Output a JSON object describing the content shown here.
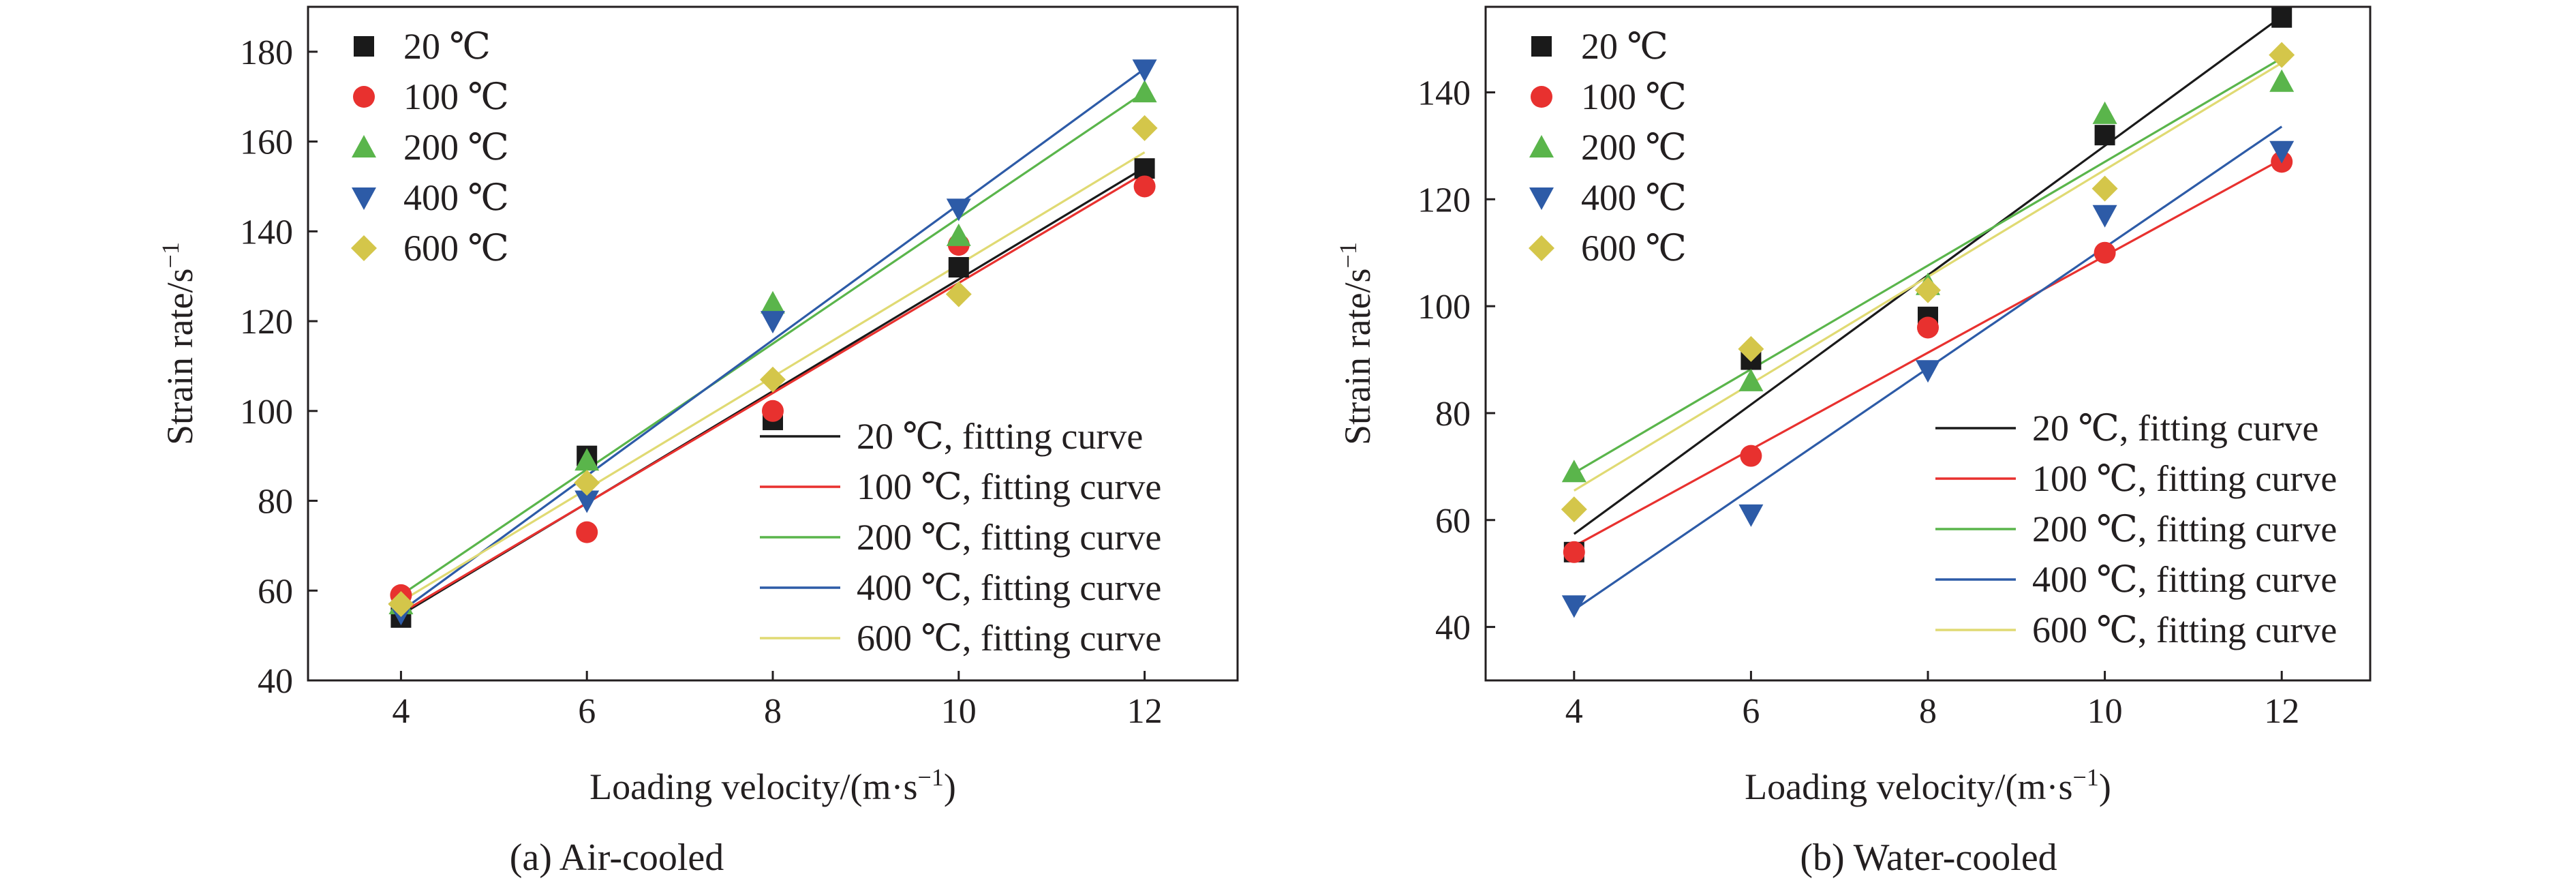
{
  "chart_data": [
    {
      "type": "scatter",
      "caption": "(a) Air-cooled",
      "xlabel": "Loading velocity/(m·s",
      "xlabel_sup": "−1",
      "xlabel_end": ")",
      "ylabel": "Strain rate/s",
      "ylabel_sup": "−1",
      "xlim": [
        3,
        13
      ],
      "ylim": [
        40,
        190
      ],
      "xticks": [
        4,
        6,
        8,
        10,
        12
      ],
      "yticks": [
        40,
        60,
        80,
        100,
        120,
        140,
        160,
        180
      ],
      "x": [
        4,
        6,
        8,
        10,
        12
      ],
      "legend_position": "top-left",
      "fit_legend_position": "bottom-right",
      "series": [
        {
          "name": "20 ℃",
          "fit_name": "20 ℃, fitting curve",
          "marker": "square",
          "color": "#1a1a1a",
          "fit_color": "#1a1a1a",
          "values": [
            54,
            90,
            98,
            132,
            154
          ],
          "fit": [
            54.6,
            79.5,
            104.4,
            129.3,
            154.2
          ]
        },
        {
          "name": "100 ℃",
          "fit_name": "100 ℃, fitting curve",
          "marker": "circle",
          "color": "#e8312f",
          "fit_color": "#e8312f",
          "values": [
            59,
            73,
            100,
            137,
            150
          ],
          "fit": [
            55,
            79.5,
            104,
            128.5,
            153
          ]
        },
        {
          "name": "200 ℃",
          "fit_name": "200 ℃, fitting curve",
          "marker": "triangle-up",
          "color": "#5ab54b",
          "fit_color": "#5ab54b",
          "values": [
            57,
            89,
            124,
            139,
            171
          ],
          "fit": [
            59,
            87,
            115,
            143,
            171
          ]
        },
        {
          "name": "400 ℃",
          "fit_name": "400 ℃, fitting curve",
          "marker": "triangle-down",
          "color": "#2d5ba7",
          "fit_color": "#2d5ba7",
          "values": [
            55,
            80,
            120,
            145,
            176
          ],
          "fit": [
            55.4,
            85.6,
            115.8,
            146,
            176.2
          ]
        },
        {
          "name": "600 ℃",
          "fit_name": "600 ℃, fitting curve",
          "marker": "diamond",
          "color": "#d4c64a",
          "fit_color": "#e0da73",
          "values": [
            57,
            84,
            107,
            126,
            163
          ],
          "fit": [
            57.6,
            82.6,
            107.6,
            132.6,
            157.6
          ]
        }
      ]
    },
    {
      "type": "scatter",
      "caption": "(b) Water-cooled",
      "xlabel": "Loading velocity/(m·s",
      "xlabel_sup": "−1",
      "xlabel_end": ")",
      "ylabel": "Strain rate/s",
      "ylabel_sup": "−1",
      "xlim": [
        3,
        13
      ],
      "ylim": [
        30,
        156
      ],
      "xticks": [
        4,
        6,
        8,
        10,
        12
      ],
      "yticks": [
        40,
        60,
        80,
        100,
        120,
        140
      ],
      "x": [
        4,
        6,
        8,
        10,
        12
      ],
      "legend_position": "top-left",
      "fit_legend_position": "bottom-right",
      "series": [
        {
          "name": "20 ℃",
          "fit_name": "20 ℃, fitting curve",
          "marker": "square",
          "color": "#1a1a1a",
          "fit_color": "#1a1a1a",
          "values": [
            54,
            90,
            98,
            132,
            154
          ],
          "fit": [
            57.4,
            81.6,
            105.8,
            130,
            154.2
          ]
        },
        {
          "name": "100 ℃",
          "fit_name": "100 ℃, fitting curve",
          "marker": "circle",
          "color": "#e8312f",
          "fit_color": "#e8312f",
          "values": [
            54,
            72,
            96,
            110,
            127
          ],
          "fit": [
            55.1,
            73.2,
            91.3,
            109.4,
            127.5
          ]
        },
        {
          "name": "200 ℃",
          "fit_name": "200 ℃, fitting curve",
          "marker": "triangle-up",
          "color": "#5ab54b",
          "fit_color": "#5ab54b",
          "values": [
            69,
            86,
            104,
            136,
            142
          ],
          "fit": [
            68.8,
            88.2,
            107.6,
            127,
            146.4
          ]
        },
        {
          "name": "400 ℃",
          "fit_name": "400 ℃, fitting curve",
          "marker": "triangle-down",
          "color": "#2d5ba7",
          "fit_color": "#2d5ba7",
          "values": [
            44,
            61,
            88,
            117,
            129
          ],
          "fit": [
            43.2,
            65.8,
            88.4,
            111,
            133.6
          ]
        },
        {
          "name": "600 ℃",
          "fit_name": "600 ℃, fitting curve",
          "marker": "diamond",
          "color": "#d4c64a",
          "fit_color": "#e0da73",
          "values": [
            62,
            92,
            103,
            122,
            147
          ],
          "fit": [
            65.5,
            85.5,
            105.5,
            125.5,
            145.5
          ]
        }
      ]
    }
  ]
}
